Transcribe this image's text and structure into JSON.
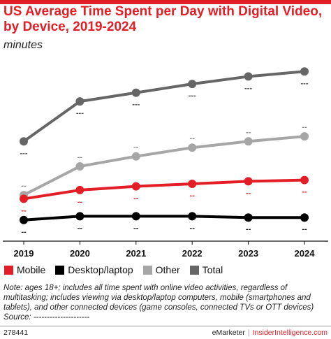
{
  "header": {
    "title": "US Average Time Spent per Day with Digital Video, by Device, 2019-2024",
    "subtitle": "minutes"
  },
  "chart_data": {
    "type": "line",
    "title": "US Average Time Spent per Day with Digital Video, by Device, 2019-2024",
    "subtitle": "minutes",
    "x": [
      "2019",
      "2020",
      "2021",
      "2022",
      "2023",
      "2024"
    ],
    "ylim": [
      0,
      140
    ],
    "grid": false,
    "legend_position": "bottom",
    "series": [
      {
        "name": "Mobile",
        "color": "#e21f26",
        "values": [
          30,
          37,
          40,
          42,
          44,
          45
        ],
        "labels": [
          "--",
          "--",
          "--",
          "--",
          "--",
          "--"
        ]
      },
      {
        "name": "Desktop/laptop",
        "color": "#000000",
        "values": [
          13,
          16,
          16,
          16,
          15,
          15
        ],
        "labels": [
          "--",
          "--",
          "--",
          "--",
          "--",
          "--"
        ]
      },
      {
        "name": "Other",
        "color": "#a6a6a6",
        "values": [
          33,
          56,
          64,
          71,
          76,
          80
        ],
        "labels": [
          "--",
          "--",
          "--",
          "--",
          "--",
          "--"
        ]
      },
      {
        "name": "Total",
        "color": "#666666",
        "values": [
          76,
          108,
          115,
          122,
          128,
          132
        ],
        "labels": [
          "---",
          "---",
          "---",
          "---",
          "---",
          "---"
        ]
      }
    ]
  },
  "note": "Note: ages 18+; includes all time spent with online video activities, regardless of multitasking; includes viewing via desktop/laptop computers, mobile (smartphones and tablets), and other connected devices (game consoles, connected TVs or OTT devices)",
  "source": "Source: ---------------------",
  "footer": {
    "id": "278441",
    "brand": "eMarketer",
    "separator": "|",
    "site": "InsiderIntelligence.com"
  }
}
